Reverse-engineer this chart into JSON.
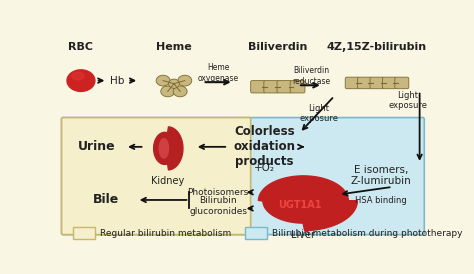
{
  "bg_color": "#faf6e4",
  "photo_box_color": "#cce8f0",
  "photo_box_edge": "#7ab8cc",
  "regular_box_color": "#f5efcc",
  "regular_box_edge": "#c8b86e",
  "labels": {
    "rbc": "RBC",
    "hb": "Hb",
    "heme": "Heme",
    "biliverdin_title": "Biliverdin",
    "bilirubin_title": "4Z,15Z-bilirubin",
    "heme_oxygenase": "Heme\noxygenase",
    "biliverdin_reductase": "Biliverdin\nreductase",
    "light_exposure1": "Light\nexposure",
    "light_exposure2": "Light\nexposure",
    "colorless": "Colorless\noxidation\nproducts",
    "plus_o2": "+O₂",
    "e_isomers": "E isomers,\nZ-lumirubin",
    "hsa_binding": "HSA binding",
    "ugt1a1": "UGT1A1",
    "liver": "Liver",
    "kidney": "Kidney",
    "urine": "Urine",
    "bile": "Bile",
    "photoisomers": "Photoisomers",
    "bilirubin_glucuronides": "Bilirubin\nglucoronides",
    "legend1": "Regular bilirubin metabolism",
    "legend2": "Bilirubin metabolism during phototherapy"
  },
  "arrow_color": "#111111",
  "text_color": "#222222",
  "rbc_color": "#cc2222",
  "kidney_color_outer": "#b52020",
  "kidney_color_inner": "#d04040",
  "liver_color": "#c02020",
  "ugt1a1_text_color": "#ee4444",
  "molecule_color": "#c8b880",
  "molecule_edge": "#7a6a30"
}
